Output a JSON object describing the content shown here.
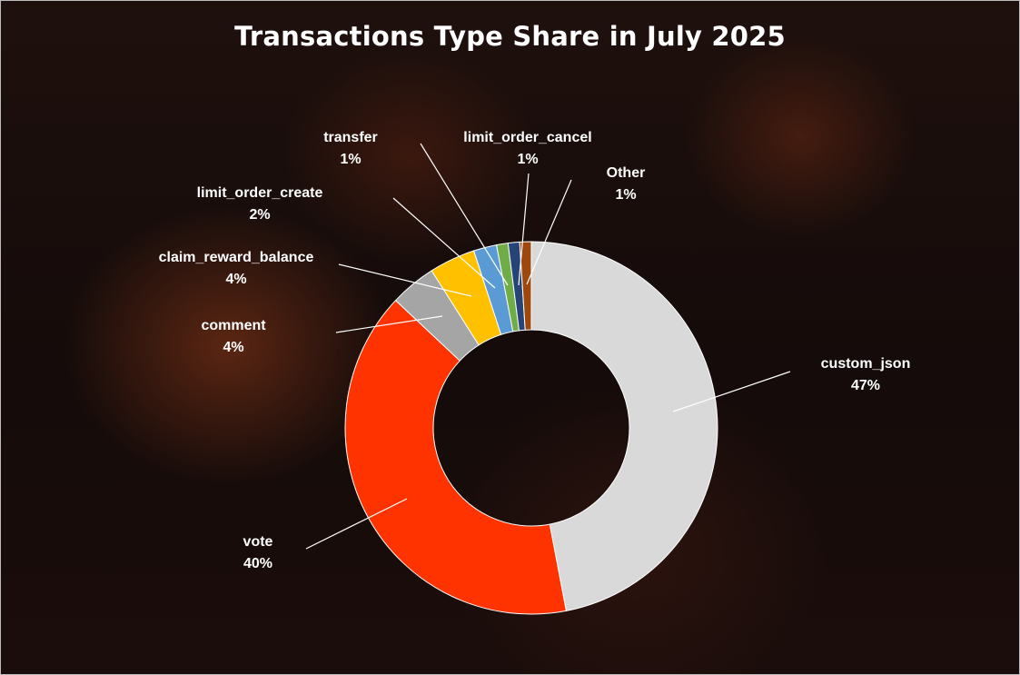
{
  "chart_data": {
    "type": "pie",
    "style": "donut",
    "title": "Transactions Type Share in July 2025",
    "slices": [
      {
        "label": "custom_json",
        "value": 47,
        "display": "47%",
        "color": "#d9d9d9"
      },
      {
        "label": "vote",
        "value": 40,
        "display": "40%",
        "color": "#ff3300"
      },
      {
        "label": "comment",
        "value": 4,
        "display": "4%",
        "color": "#a5a5a5"
      },
      {
        "label": "claim_reward_balance",
        "value": 4,
        "display": "4%",
        "color": "#ffc000"
      },
      {
        "label": "limit_order_create",
        "value": 2,
        "display": "2%",
        "color": "#5b9bd5"
      },
      {
        "label": "transfer",
        "value": 1,
        "display": "1%",
        "color": "#70ad47"
      },
      {
        "label": "limit_order_cancel",
        "value": 1,
        "display": "1%",
        "color": "#264478"
      },
      {
        "label": "Other",
        "value": 1,
        "display": "1%",
        "color": "#9e480e"
      }
    ],
    "legend": "none",
    "data_labels": "outside-with-leader-lines"
  }
}
